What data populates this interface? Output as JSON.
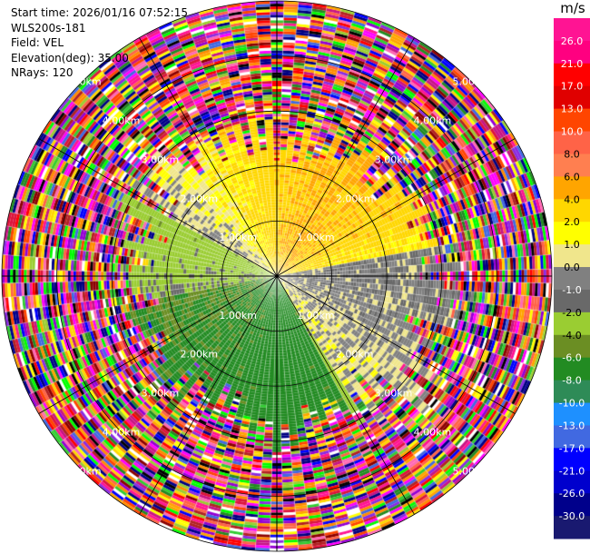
{
  "info": {
    "start_time": "Start time: 2026/01/16 07:52:15",
    "instrument": "WLS200s-181",
    "field": "Field: VEL",
    "elevation": "Elevation(deg): 35.00",
    "nrays": "NRays: 120"
  },
  "chart_data": {
    "type": "heatmap",
    "subtype": "polar-ppi",
    "field": "VEL",
    "unit": "m/s",
    "n_rays": 120,
    "elevation_deg": 35.0,
    "max_range_km": 5.0,
    "range_rings_km": [
      1,
      2,
      3,
      4,
      5
    ],
    "range_labels": [
      "1.00km",
      "2.00km",
      "3.00km",
      "4.00km",
      "5.00km"
    ],
    "spokes_deg": [
      0,
      30,
      60,
      90,
      120,
      150,
      180,
      210,
      240,
      270,
      300,
      330
    ],
    "valid_echo_radius_km": {
      "min": 2.3,
      "max": 3.3
    },
    "colorbar": {
      "tick_labels": [
        "26.0",
        "21.0",
        "17.0",
        "13.0",
        "10.0",
        "8.0",
        "6.0",
        "4.0",
        "2.0",
        "1.0",
        "0.0",
        "-1.0",
        "-2.0",
        "-4.0",
        "-6.0",
        "-8.0",
        "-10.0",
        "-13.0",
        "-17.0",
        "-21.0",
        "-26.0",
        "-30.0"
      ],
      "colors": [
        "#ff1493",
        "#ff0080",
        "#ff0000",
        "#e00000",
        "#ff4500",
        "#ff6347",
        "#ff7f50",
        "#ffa500",
        "#ffd700",
        "#ffff00",
        "#f0e68c",
        "#808080",
        "#696969",
        "#9acd32",
        "#6b8e23",
        "#228b22",
        "#2e8b57",
        "#1e90ff",
        "#4169e1",
        "#0000ff",
        "#0000cd",
        "#00008b",
        "#191970"
      ]
    }
  }
}
